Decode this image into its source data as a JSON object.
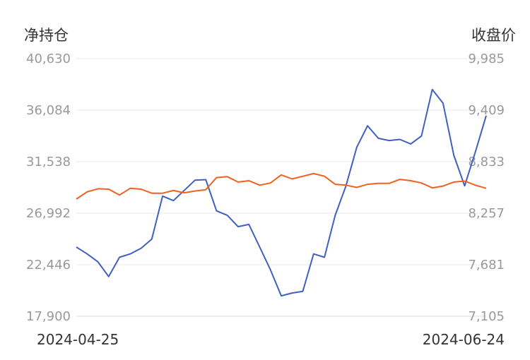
{
  "chart_data": {
    "type": "line",
    "left_axis_title": "净持仓",
    "right_axis_title": "收盘价",
    "x_start_label": "2024-04-25",
    "x_end_label": "2024-06-24",
    "left_ticks": [
      "40,630",
      "36,084",
      "31,538",
      "26,992",
      "22,446",
      "17,900"
    ],
    "right_ticks": [
      "9,985",
      "9,409",
      "8,833",
      "8,257",
      "7,681",
      "7,105"
    ],
    "left_ylim": [
      17900,
      40630
    ],
    "right_ylim": [
      7105,
      9985
    ],
    "grid": true,
    "series": [
      {
        "axis": "left",
        "color": "#4060c0",
        "values": [
          24000,
          23400,
          22700,
          21400,
          23100,
          23400,
          23900,
          24700,
          28500,
          28100,
          29000,
          29900,
          29950,
          27200,
          26800,
          25800,
          26000,
          24000,
          22000,
          19700,
          19950,
          20100,
          23400,
          23100,
          26800,
          29400,
          32800,
          34700,
          33600,
          33400,
          33500,
          33100,
          33800,
          37900,
          36700,
          32100,
          29400,
          32400,
          35600
        ]
      },
      {
        "axis": "right",
        "color": "#f06020",
        "values": [
          8415,
          8495,
          8530,
          8525,
          8460,
          8535,
          8525,
          8480,
          8480,
          8510,
          8485,
          8505,
          8520,
          8655,
          8665,
          8605,
          8620,
          8570,
          8595,
          8685,
          8640,
          8670,
          8700,
          8670,
          8580,
          8570,
          8545,
          8580,
          8590,
          8590,
          8635,
          8620,
          8595,
          8540,
          8560,
          8605,
          8615,
          8570,
          8535
        ]
      }
    ]
  }
}
